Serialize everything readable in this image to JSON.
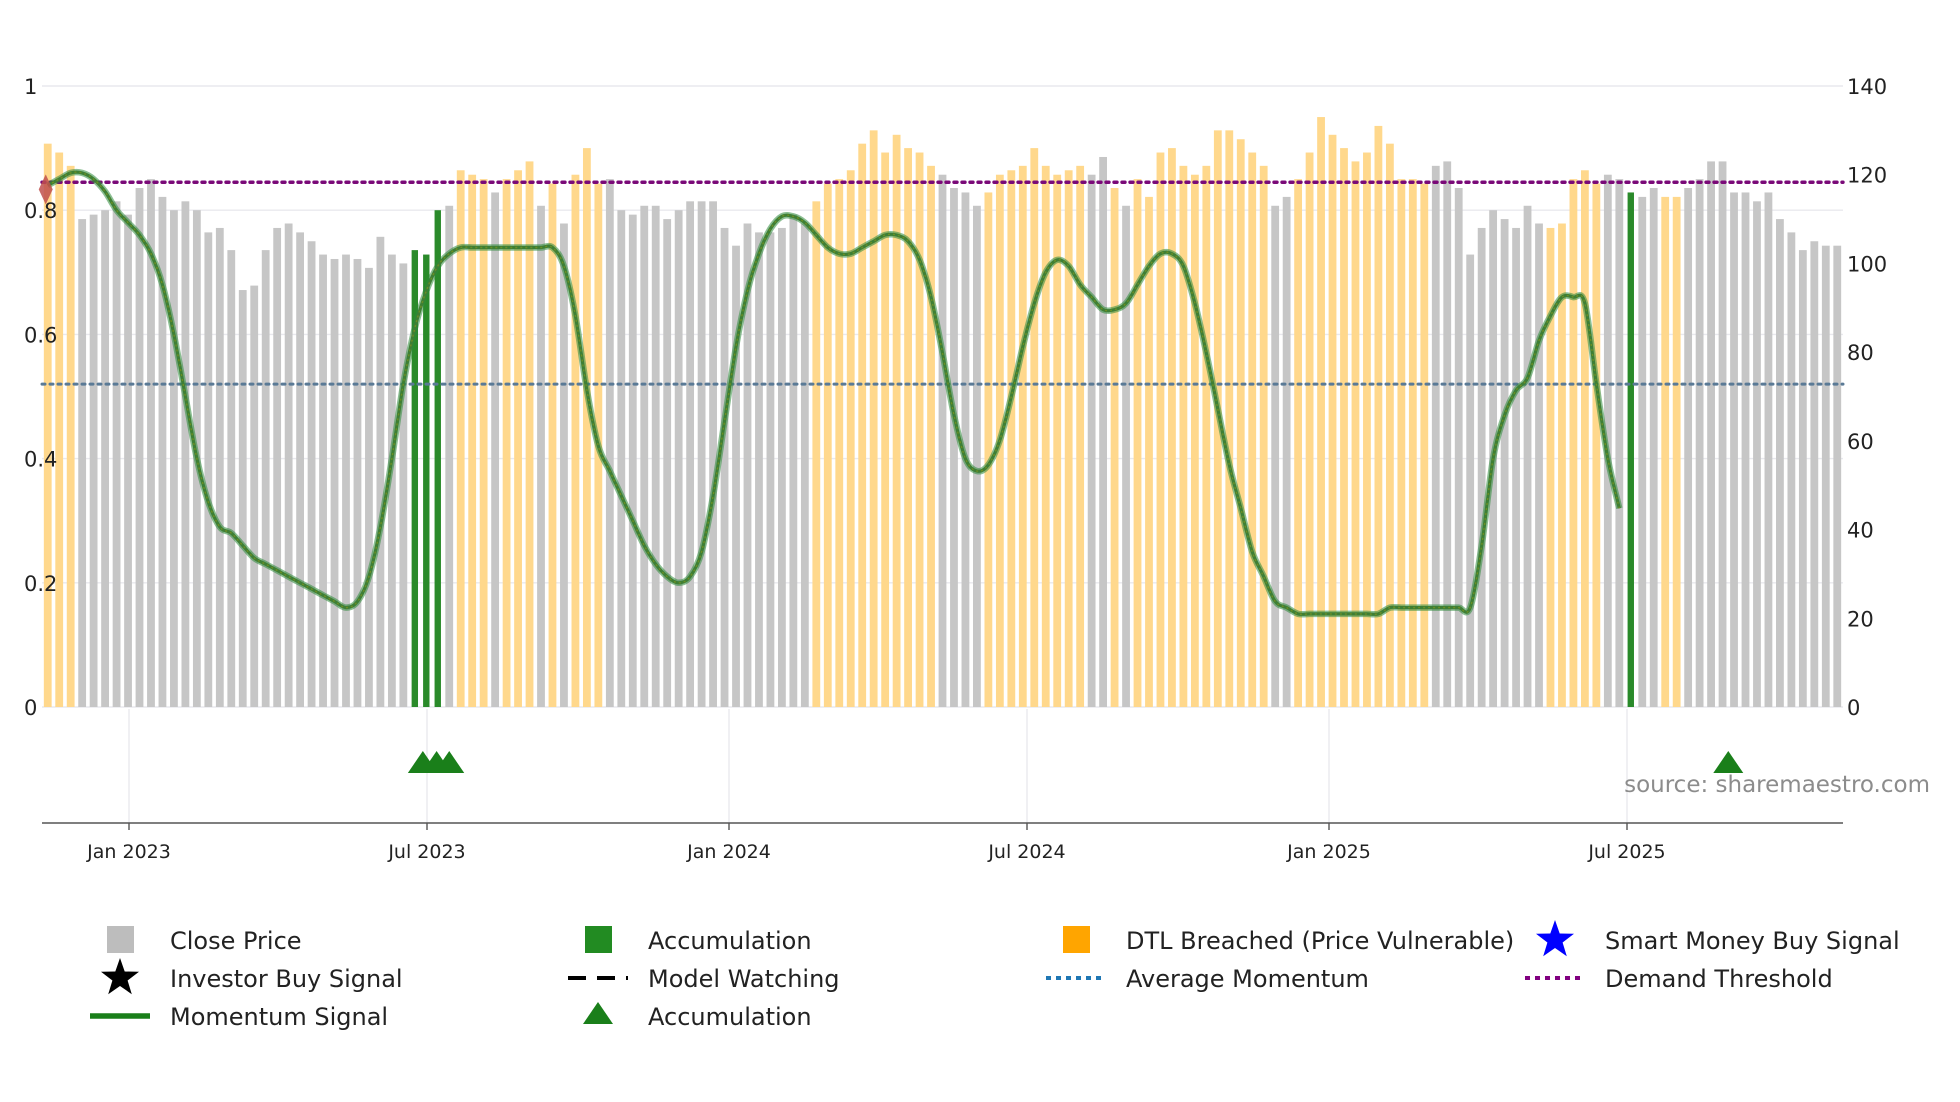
{
  "chart_data": {
    "type": "bar",
    "source": "source: sharemaestro.com",
    "x_ticks": [
      "Jan 2023",
      "Jul 2023",
      "Jan 2024",
      "Jul 2024",
      "Jan 2025",
      "Jul 2025"
    ],
    "left_axis": {
      "range": [
        0,
        1
      ],
      "ticks": [
        "0",
        "0.2",
        "0.4",
        "0.6",
        "0.8",
        "1"
      ]
    },
    "right_axis": {
      "range": [
        0,
        140
      ],
      "ticks": [
        "0",
        "20",
        "40",
        "60",
        "80",
        "100",
        "120",
        "140"
      ]
    },
    "close_price": [
      127,
      125,
      122,
      110,
      111,
      112,
      114,
      111,
      117,
      119,
      115,
      112,
      114,
      112,
      107,
      108,
      103,
      94,
      95,
      103,
      108,
      109,
      107,
      105,
      102,
      101,
      102,
      101,
      99,
      106,
      102,
      100,
      103,
      102,
      112,
      113,
      121,
      120,
      119,
      116,
      119,
      121,
      123,
      113,
      118,
      109,
      120,
      126,
      118,
      119,
      112,
      111,
      113,
      113,
      110,
      112,
      114,
      114,
      114,
      108,
      104,
      109,
      107,
      107,
      108,
      111,
      109,
      114,
      118,
      119,
      121,
      127,
      130,
      125,
      129,
      126,
      125,
      122,
      120,
      117,
      116,
      113,
      116,
      120,
      121,
      122,
      126,
      122,
      120,
      121,
      122,
      120,
      124,
      117,
      113,
      119,
      115,
      125,
      126,
      122,
      120,
      122,
      130,
      130,
      128,
      125,
      122,
      113,
      115,
      119,
      125,
      133,
      129,
      126,
      123,
      125,
      131,
      127,
      119,
      119,
      118,
      122,
      123,
      117,
      102,
      108,
      112,
      110,
      108,
      113,
      109,
      108,
      109,
      119,
      121,
      118,
      120,
      119,
      116,
      115,
      117,
      115,
      115,
      117,
      119,
      123,
      123,
      116,
      116,
      114,
      116,
      110,
      107,
      103,
      105,
      104,
      104
    ],
    "bar_category": [
      "D",
      "D",
      "D",
      "C",
      "C",
      "C",
      "C",
      "C",
      "C",
      "C",
      "C",
      "C",
      "C",
      "C",
      "C",
      "C",
      "C",
      "C",
      "C",
      "C",
      "C",
      "C",
      "C",
      "C",
      "C",
      "C",
      "C",
      "C",
      "C",
      "C",
      "C",
      "C",
      "A",
      "A",
      "A",
      "C",
      "D",
      "D",
      "D",
      "C",
      "D",
      "D",
      "D",
      "C",
      "D",
      "C",
      "D",
      "D",
      "D",
      "C",
      "C",
      "C",
      "C",
      "C",
      "C",
      "C",
      "C",
      "C",
      "C",
      "C",
      "C",
      "C",
      "C",
      "C",
      "C",
      "C",
      "C",
      "D",
      "D",
      "D",
      "D",
      "D",
      "D",
      "D",
      "D",
      "D",
      "D",
      "D",
      "C",
      "C",
      "C",
      "C",
      "D",
      "D",
      "D",
      "D",
      "D",
      "D",
      "D",
      "D",
      "D",
      "C",
      "C",
      "D",
      "C",
      "D",
      "D",
      "D",
      "D",
      "D",
      "D",
      "D",
      "D",
      "D",
      "D",
      "D",
      "D",
      "C",
      "C",
      "D",
      "D",
      "D",
      "D",
      "D",
      "D",
      "D",
      "D",
      "D",
      "D",
      "D",
      "D",
      "C",
      "C",
      "C",
      "C",
      "C",
      "C",
      "C",
      "C",
      "C",
      "C",
      "D",
      "D",
      "D",
      "D",
      "D",
      "C",
      "C",
      "A",
      "C",
      "C",
      "D",
      "D",
      "C",
      "C",
      "C",
      "C",
      "C",
      "C",
      "C",
      "C",
      "C",
      "C"
    ],
    "momentum_signal": [
      0.84,
      0.85,
      0.86,
      0.86,
      0.85,
      0.83,
      0.8,
      0.78,
      0.76,
      0.73,
      0.68,
      0.6,
      0.5,
      0.4,
      0.33,
      0.29,
      0.28,
      0.26,
      0.24,
      0.23,
      0.22,
      0.21,
      0.2,
      0.19,
      0.18,
      0.17,
      0.16,
      0.17,
      0.21,
      0.29,
      0.4,
      0.52,
      0.61,
      0.67,
      0.71,
      0.73,
      0.74,
      0.74,
      0.74,
      0.74,
      0.74,
      0.74,
      0.74,
      0.74,
      0.74,
      0.71,
      0.63,
      0.51,
      0.42,
      0.38,
      0.34,
      0.3,
      0.26,
      0.23,
      0.21,
      0.2,
      0.21,
      0.25,
      0.34,
      0.46,
      0.58,
      0.67,
      0.73,
      0.77,
      0.79,
      0.79,
      0.78,
      0.76,
      0.74,
      0.73,
      0.73,
      0.74,
      0.75,
      0.76,
      0.76,
      0.75,
      0.72,
      0.66,
      0.57,
      0.47,
      0.4,
      0.38,
      0.39,
      0.43,
      0.5,
      0.58,
      0.65,
      0.7,
      0.72,
      0.71,
      0.68,
      0.66,
      0.64,
      0.64,
      0.65,
      0.68,
      0.71,
      0.73,
      0.73,
      0.71,
      0.65,
      0.57,
      0.48,
      0.39,
      0.32,
      0.25,
      0.21,
      0.17,
      0.16,
      0.15,
      0.15,
      0.15,
      0.15,
      0.15,
      0.15,
      0.15,
      0.15,
      0.16,
      0.16,
      0.16,
      0.16,
      0.16,
      0.16,
      0.16,
      0.16,
      0.26,
      0.4,
      0.47,
      0.51,
      0.53,
      0.59,
      0.63,
      0.66,
      0.66,
      0.65,
      0.52,
      0.4,
      0.32
    ],
    "demand_threshold": 0.845,
    "average_momentum": 0.52,
    "accumulation_markers": [
      32.7,
      33.9,
      35.0,
      146.5
    ],
    "smart_money_marker": {
      "index": 0,
      "value": 0.84
    },
    "legend": [
      {
        "label": "Close Price",
        "symbol": "square",
        "color": "#bdbdbd"
      },
      {
        "label": "Accumulation",
        "symbol": "square",
        "color": "#228b22"
      },
      {
        "label": "DTL Breached (Price Vulnerable)",
        "symbol": "square",
        "color": "#ffa500"
      },
      {
        "label": "Smart Money Buy Signal",
        "symbol": "star",
        "color": "#0000ff"
      },
      {
        "label": "Investor Buy Signal",
        "symbol": "star",
        "color": "#000000"
      },
      {
        "label": "Model Watching",
        "symbol": "dash",
        "color": "#000000"
      },
      {
        "label": "Average Momentum",
        "symbol": "dot",
        "color": "#1f77b4"
      },
      {
        "label": "Demand Threshold",
        "symbol": "dot",
        "color": "#800080"
      },
      {
        "label": "Momentum Signal",
        "symbol": "line",
        "color": "#1a7f1a"
      },
      {
        "label": "Accumulation",
        "symbol": "triangle",
        "color": "#1a7f1a"
      }
    ],
    "colors": {
      "close": "#c6c6c6",
      "dtl": "#ffd88c",
      "accum": "#2a8a2a",
      "momentum_main": "#3e7f35",
      "momentum_edge": "#2e8b3a",
      "momentum_yellow": "#8c9a1a",
      "demand": "#7a0a78",
      "average": "#5a7a96",
      "grid": "#e9e9ee",
      "axis": "#555555"
    }
  }
}
